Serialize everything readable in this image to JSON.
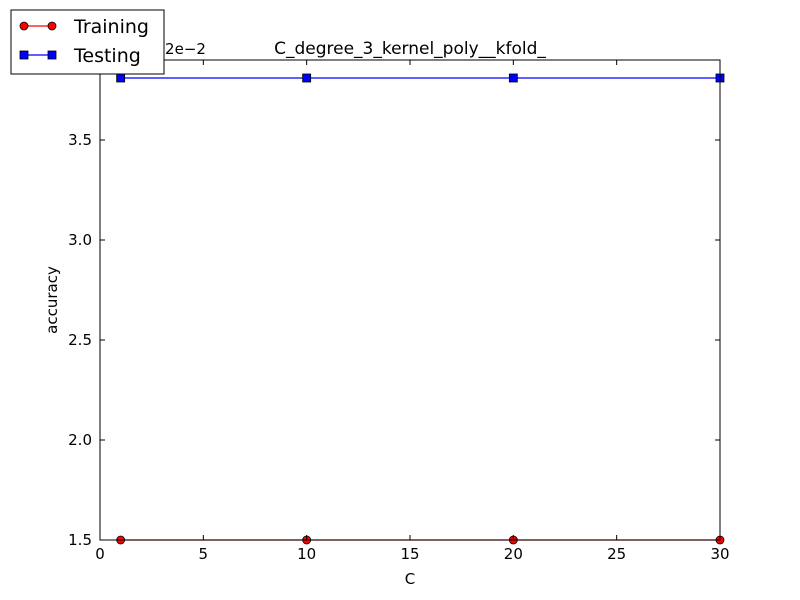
{
  "chart_data": {
    "type": "line",
    "title": "C_degree_3_kernel_poly__kfold_",
    "xlabel": "C",
    "ylabel": "accuracy",
    "offset_text": "+7.30542e−2",
    "xlim": [
      0,
      30
    ],
    "ylim": [
      1.5,
      3.9
    ],
    "xticks": [
      0,
      5,
      10,
      15,
      20,
      25,
      30
    ],
    "yticks": [
      1.5,
      2.0,
      2.5,
      3.0,
      3.5
    ],
    "xtick_labels": [
      "0",
      "5",
      "10",
      "15",
      "20",
      "25",
      "30"
    ],
    "ytick_labels": [
      "1.5",
      "2.0",
      "2.5",
      "3.0",
      "3.5"
    ],
    "grid": false,
    "legend_position": "top-left",
    "series": [
      {
        "name": "Training",
        "color": "#ff0000",
        "marker": "circle",
        "x": [
          1,
          10,
          20,
          30
        ],
        "y": [
          1.5,
          1.5,
          1.5,
          1.5
        ]
      },
      {
        "name": "Testing",
        "color": "#0000ff",
        "marker": "square",
        "x": [
          1,
          10,
          20,
          30
        ],
        "y": [
          3.81,
          3.81,
          3.81,
          3.81
        ]
      }
    ]
  }
}
